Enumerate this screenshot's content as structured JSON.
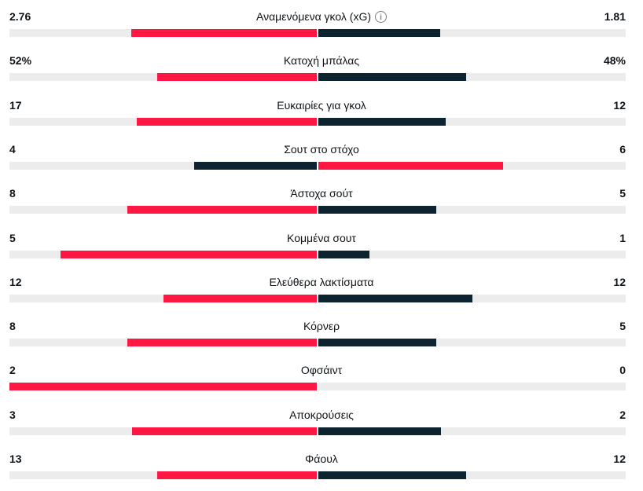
{
  "colors": {
    "leader": "#ff1744",
    "trailer": "#0d2330",
    "track": "#ececec"
  },
  "stats": [
    {
      "label": "Αναμενόμενα γκολ (xG)",
      "left_text": "2.76",
      "right_text": "1.81",
      "left": 2.76,
      "right": 1.81,
      "info": true,
      "info_icon": "info-icon"
    },
    {
      "label": "Κατοχή μπάλας",
      "left_text": "52%",
      "right_text": "48%",
      "left": 52,
      "right": 48
    },
    {
      "label": "Ευκαιρίες για γκολ",
      "left_text": "17",
      "right_text": "12",
      "left": 17,
      "right": 12
    },
    {
      "label": "Σουτ στο στόχο",
      "left_text": "4",
      "right_text": "6",
      "left": 4,
      "right": 6
    },
    {
      "label": "Άστοχα σούτ",
      "left_text": "8",
      "right_text": "5",
      "left": 8,
      "right": 5
    },
    {
      "label": "Κομμένα σουτ",
      "left_text": "5",
      "right_text": "1",
      "left": 5,
      "right": 1
    },
    {
      "label": "Ελεύθερα λακτίσματα",
      "left_text": "12",
      "right_text": "12",
      "left": 12,
      "right": 12
    },
    {
      "label": "Κόρνερ",
      "left_text": "8",
      "right_text": "5",
      "left": 8,
      "right": 5
    },
    {
      "label": "Οφσάιντ",
      "left_text": "2",
      "right_text": "0",
      "left": 2,
      "right": 0
    },
    {
      "label": "Αποκρούσεις",
      "left_text": "3",
      "right_text": "2",
      "left": 3,
      "right": 2
    },
    {
      "label": "Φάουλ",
      "left_text": "13",
      "right_text": "12",
      "left": 13,
      "right": 12
    }
  ]
}
